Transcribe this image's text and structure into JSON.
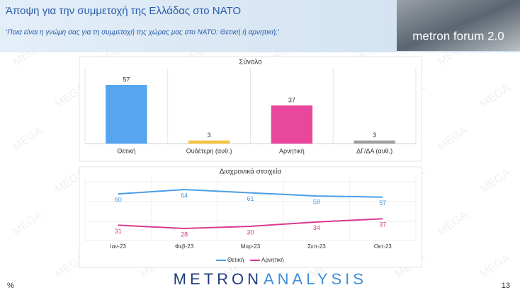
{
  "header": {
    "title": "Άποψη για την συμμετοχή της Ελλάδας στο ΝΑΤΟ",
    "subtitle": "‘Ποια είναι η γνώμη σας για τη συμμετοχή της χώρας μας στο ΝΑΤΟ: Θετική ή αρνητική;’",
    "logo": "metron forum 2.0"
  },
  "watermark": "MEGA",
  "chart_data": [
    {
      "type": "bar",
      "title": "Σύνολο",
      "categories": [
        "Θετική",
        "Ουδέτερη (αυθ.)",
        "Αρνητική",
        "ΔΓ/ΔΑ (αυθ.)"
      ],
      "values": [
        57,
        3,
        37,
        3
      ],
      "colors": [
        "#56a5ee",
        "#f5c542",
        "#e8479c",
        "#a0a0a0"
      ]
    },
    {
      "type": "line",
      "title": "Διαχρονικά στοιχεία",
      "categories": [
        "Ιαν-23",
        "Φεβ-23",
        "Μαρ-23",
        "Σεπ-23",
        "Οκτ-23"
      ],
      "series": [
        {
          "name": "Θετική",
          "color": "#4a9ee6",
          "values": [
            60,
            64,
            61,
            58,
            57
          ]
        },
        {
          "name": "Αρνητική",
          "color": "#d9398f",
          "values": [
            31,
            28,
            30,
            34,
            37
          ]
        }
      ],
      "legend": "bottom"
    }
  ],
  "footer": {
    "logo_left": "METRON",
    "logo_right": "ANALYSIS",
    "unit": "%",
    "page": "13"
  }
}
